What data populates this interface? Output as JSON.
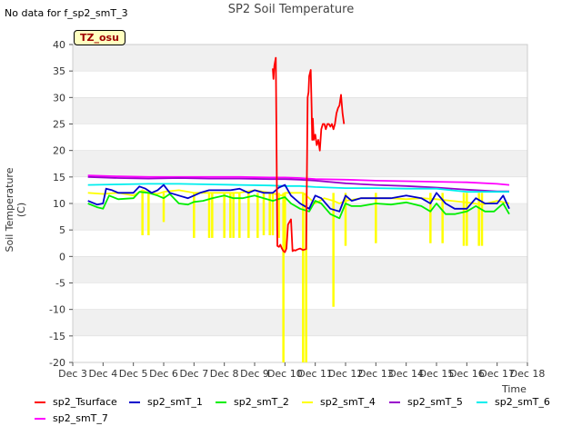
{
  "note": "No data for f_sp2_smT_3",
  "badge": "TZ_osu",
  "chart_data": {
    "type": "line",
    "title": "SP2 Soil Temperature",
    "xlabel": "Time",
    "ylabel": "Soil Temperature (C)",
    "xlim": [
      3,
      18
    ],
    "ylim": [
      -20,
      40
    ],
    "x_ticks": [
      3,
      4,
      5,
      6,
      7,
      8,
      9,
      10,
      11,
      12,
      13,
      14,
      15,
      16,
      17,
      18
    ],
    "x_tick_labels": [
      "Dec 3",
      "Dec 4",
      "Dec 5",
      "Dec 6",
      "Dec 7",
      "Dec 8",
      "Dec 9",
      "Dec 10",
      "Dec 11",
      "Dec 12",
      "Dec 13",
      "Dec 14",
      "Dec 15",
      "Dec 16",
      "Dec 17",
      "Dec 18"
    ],
    "y_ticks": [
      -20,
      -15,
      -10,
      -5,
      0,
      5,
      10,
      15,
      20,
      25,
      30,
      35,
      40
    ],
    "y_tick_labels": [
      "-20",
      "-15",
      "-10",
      "-5",
      "0",
      "5",
      "10",
      "15",
      "20",
      "25",
      "30",
      "35",
      "40"
    ],
    "grid": "horizontal bands",
    "legend_position": "bottom",
    "series": [
      {
        "name": "sp2_Tsurface",
        "color": "#ff0000",
        "x": [
          9.6,
          9.62,
          9.65,
          9.7,
          9.75,
          9.8,
          9.85,
          9.9,
          9.95,
          10.0,
          10.05,
          10.1,
          10.15,
          10.2,
          10.25,
          10.3,
          10.35,
          10.4,
          10.5,
          10.6,
          10.7,
          10.75,
          10.78,
          10.8,
          10.85,
          10.88,
          10.9,
          10.92,
          10.95,
          11.0,
          11.05,
          11.1,
          11.15,
          11.2,
          11.25,
          11.3,
          11.35,
          11.4,
          11.45,
          11.5,
          11.55,
          11.6,
          11.65,
          11.7,
          11.75,
          11.8,
          11.85,
          11.9,
          11.95
        ],
        "y": [
          35.5,
          33.5,
          36,
          37.5,
          2,
          1.8,
          2.2,
          1.5,
          1,
          0.8,
          1.5,
          6,
          6.5,
          7,
          1,
          1.2,
          1.1,
          1.3,
          1.5,
          1.2,
          1.4,
          30,
          31,
          34,
          35.2,
          28,
          22,
          26,
          22,
          23,
          21,
          22,
          20,
          24,
          25,
          25,
          24,
          25,
          25,
          24.5,
          25,
          24,
          25,
          27,
          28,
          28.5,
          30.5,
          27,
          25
        ]
      },
      {
        "name": "sp2_smT_1",
        "color": "#0000cc",
        "x": [
          3.5,
          3.8,
          4.0,
          4.1,
          4.3,
          4.5,
          5.0,
          5.2,
          5.4,
          5.6,
          5.8,
          6.0,
          6.2,
          6.5,
          6.8,
          7.0,
          7.2,
          7.5,
          8.0,
          8.2,
          8.5,
          8.8,
          9.0,
          9.3,
          9.6,
          9.8,
          10.0,
          10.2,
          10.5,
          10.8,
          11.0,
          11.2,
          11.5,
          11.8,
          12.0,
          12.2,
          12.5,
          13.0,
          13.5,
          14.0,
          14.5,
          14.8,
          15.0,
          15.3,
          15.6,
          16.0,
          16.3,
          16.6,
          16.9,
          17.0,
          17.2,
          17.4
        ],
        "y": [
          10.5,
          9.8,
          10,
          12.8,
          12.5,
          12,
          12,
          13.2,
          12.8,
          12,
          12.5,
          13.5,
          12,
          11.5,
          11,
          11.5,
          12,
          12.5,
          12.5,
          12.5,
          12.8,
          12,
          12.5,
          12,
          12,
          13,
          13.5,
          11.5,
          10,
          9,
          11.5,
          11,
          9,
          8.5,
          11.5,
          10.5,
          11,
          11,
          11,
          11.5,
          11,
          10,
          12,
          10,
          9,
          9,
          11,
          10,
          10,
          10,
          11.5,
          9
        ]
      },
      {
        "name": "sp2_smT_2",
        "color": "#00ee00",
        "x": [
          3.5,
          3.8,
          4.0,
          4.2,
          4.5,
          5.0,
          5.2,
          5.5,
          5.8,
          6.0,
          6.2,
          6.5,
          6.8,
          7.0,
          7.3,
          7.6,
          8.0,
          8.3,
          8.6,
          9.0,
          9.3,
          9.6,
          10.0,
          10.2,
          10.5,
          10.8,
          11.0,
          11.2,
          11.5,
          11.8,
          12.0,
          12.2,
          12.5,
          13.0,
          13.5,
          14.0,
          14.5,
          14.8,
          15.0,
          15.3,
          15.6,
          16.0,
          16.3,
          16.6,
          16.9,
          17.2,
          17.4
        ],
        "y": [
          10,
          9.3,
          9,
          11.5,
          10.8,
          11,
          12.2,
          12,
          11.5,
          11,
          11.8,
          10,
          9.8,
          10.3,
          10.5,
          11,
          11.5,
          11,
          11,
          11.5,
          11,
          10.5,
          11.2,
          10,
          9,
          8.5,
          10.5,
          10,
          8,
          7.2,
          10,
          9.5,
          9.5,
          10,
          9.8,
          10.2,
          9.5,
          8.5,
          10,
          8,
          8,
          8.5,
          9.5,
          8.5,
          8.5,
          10,
          8
        ]
      },
      {
        "name": "sp2_smT_4",
        "color": "#ffff00",
        "x": [
          3.5,
          4.0,
          4.5,
          5.0,
          5.3,
          5.5,
          5.8,
          6.0,
          6.5,
          7.0,
          7.5,
          8.0,
          8.5,
          9.0,
          9.5,
          9.9,
          10.0,
          10.3,
          10.6,
          10.8,
          11.0,
          11.3,
          11.6,
          11.8,
          12.0,
          12.5,
          13.0,
          13.5,
          14.0,
          14.5,
          15.0,
          15.5,
          16.0,
          16.5,
          17.0,
          17.4
        ],
        "y": [
          12,
          11.8,
          12,
          11.5,
          12.5,
          12,
          11.8,
          12.2,
          12.5,
          12,
          12,
          12,
          12,
          12.5,
          12,
          11.5,
          12,
          12,
          12,
          11,
          10,
          11,
          10.5,
          10,
          10.5,
          11,
          11,
          11,
          10.8,
          11,
          10.8,
          10.5,
          10.2,
          9.8,
          10.5,
          10
        ]
      },
      {
        "name": "sp2_smT_5",
        "color": "#9900cc",
        "x": [
          3.5,
          4.5,
          5.5,
          6.5,
          7.5,
          8.5,
          9.5,
          10.0,
          10.5,
          11.0,
          12.0,
          13.0,
          14.0,
          15.0,
          16.0,
          17.0,
          17.4
        ],
        "y": [
          15,
          14.8,
          14.7,
          14.8,
          14.7,
          14.7,
          14.6,
          14.6,
          14.5,
          14.3,
          13.8,
          13.5,
          13.3,
          13,
          12.6,
          12.3,
          12.3
        ]
      },
      {
        "name": "sp2_smT_6",
        "color": "#00eeee",
        "x": [
          3.5,
          4.5,
          5.5,
          6.5,
          7.5,
          8.5,
          9.5,
          10.0,
          10.5,
          11.0,
          12.0,
          13.0,
          14.0,
          15.0,
          16.0,
          17.0,
          17.4
        ],
        "y": [
          13.5,
          13.6,
          13.7,
          13.7,
          13.6,
          13.5,
          13.4,
          13.3,
          13.3,
          13.1,
          12.9,
          12.9,
          12.8,
          12.8,
          12.2,
          12.2,
          12.2
        ]
      },
      {
        "name": "sp2_smT_7",
        "color": "#ff00ff",
        "x": [
          3.5,
          4.5,
          5.5,
          6.5,
          7.5,
          8.5,
          9.5,
          10.0,
          10.5,
          11.0,
          12.0,
          13.0,
          14.0,
          15.0,
          16.0,
          17.0,
          17.4
        ],
        "y": [
          15.3,
          15.1,
          15,
          15,
          15,
          15,
          14.9,
          14.9,
          14.8,
          14.6,
          14.5,
          14.3,
          14.2,
          14.1,
          14,
          13.7,
          13.5
        ]
      }
    ],
    "smT_4_dips": {
      "x": [
        5.3,
        5.5,
        6.0,
        7.0,
        7.5,
        7.6,
        8.0,
        8.2,
        8.3,
        8.5,
        8.8,
        9.1,
        9.3,
        9.5,
        9.6,
        9.8,
        9.95,
        10.0,
        10.6,
        10.7,
        11.6,
        12.0,
        13.0,
        14.8,
        15.2,
        15.9,
        16.0,
        16.4,
        16.5
      ],
      "y": [
        4,
        4,
        6.5,
        3.5,
        3.5,
        3.5,
        3.5,
        3.5,
        3.5,
        3.5,
        3.5,
        3.5,
        4,
        4,
        4,
        3.5,
        -20,
        1,
        -20,
        -20,
        -9.5,
        2,
        2.5,
        2.5,
        2.5,
        2,
        2,
        2,
        2
      ]
    }
  },
  "legend": [
    {
      "label": "sp2_Tsurface",
      "color": "#ff0000"
    },
    {
      "label": "sp2_smT_1",
      "color": "#0000cc"
    },
    {
      "label": "sp2_smT_2",
      "color": "#00ee00"
    },
    {
      "label": "sp2_smT_4",
      "color": "#ffff00"
    },
    {
      "label": "sp2_smT_5",
      "color": "#9900cc"
    },
    {
      "label": "sp2_smT_6",
      "color": "#00eeee"
    },
    {
      "label": "sp2_smT_7",
      "color": "#ff00ff"
    }
  ]
}
